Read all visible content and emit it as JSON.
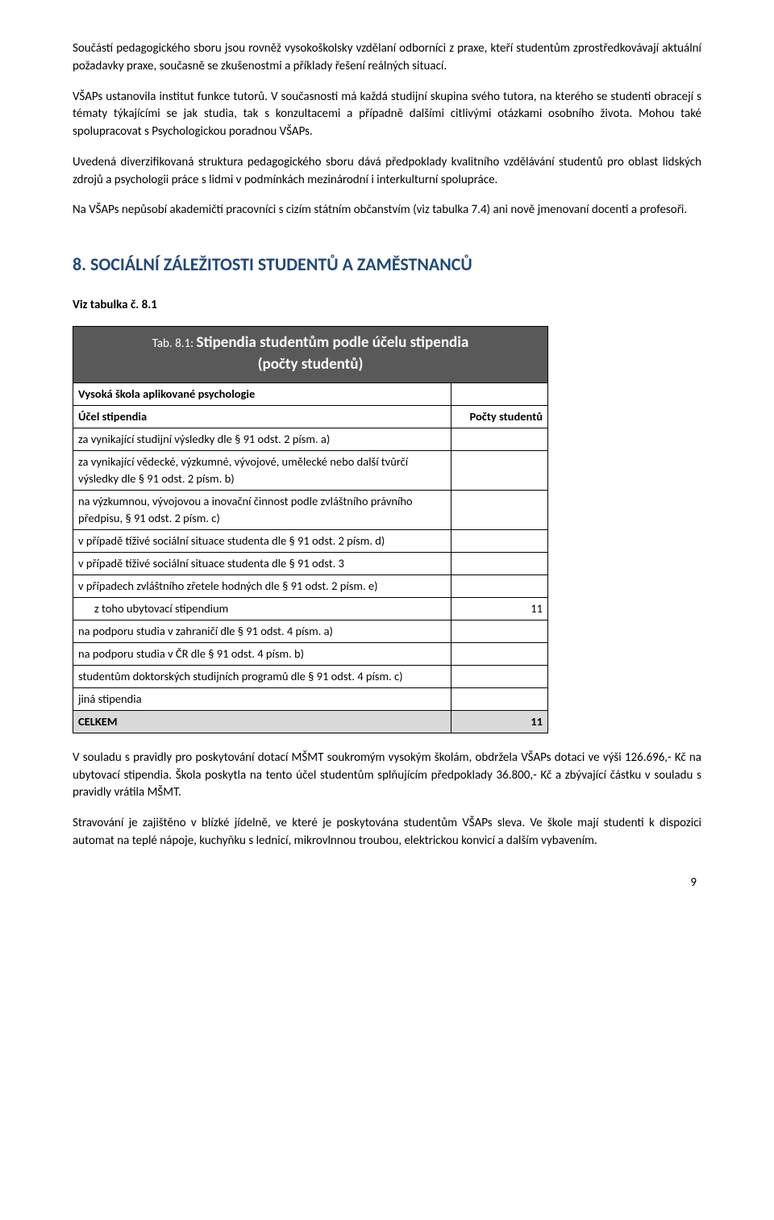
{
  "paragraphs": {
    "p1": "Součástí pedagogického sboru jsou rovněž vysokoškolsky vzdělaní odborníci z praxe, kteří studentům zprostředkovávají aktuální požadavky praxe, současně se zkušenostmi a příklady řešení reálných situací.",
    "p2": "VŠAPs ustanovila institut funkce tutorů. V současnosti má každá studijní skupina svého tutora, na kterého se studenti obracejí s tématy týkajícími se jak studia, tak s konzultacemi a případně dalšími citlivými otázkami osobního života. Mohou také spolupracovat s Psychologickou poradnou VŠAPs.",
    "p3": "Uvedená diverzifikovaná struktura pedagogického sboru dává předpoklady kvalitního vzdělávání studentů pro oblast lidských zdrojů a psychologii práce s lidmi v podmínkách mezinárodní i interkulturní spolupráce.",
    "p4": "Na VŠAPs nepůsobí akademičtí pracovníci s cizím státním občanstvím (viz tabulka 7.4) ani nově jmenovaní docenti a profesoři.",
    "p5": "V souladu s pravidly pro poskytování dotací MŠMT soukromým vysokým školám, obdržela VŠAPs dotaci ve výši 126.696,- Kč na ubytovací stipendia. Škola poskytla na tento účel studentům splňujícím předpoklady 36.800,- Kč a zbývající částku v souladu s pravidly vrátila MŠMT.",
    "p6": "Stravování je zajištěno v blízké jídelně, ve které je poskytována studentům VŠAPs sleva. Ve škole mají studenti k dispozici automat na teplé nápoje, kuchyňku s lednicí, mikrovlnnou troubou, elektrickou konvicí a dalším vybavením."
  },
  "section": {
    "heading": "8. SOCIÁLNÍ ZÁLEŽITOSTI STUDENTŮ A ZAMĚSTNANCŮ",
    "heading_color": "#1f497d",
    "sub": "Viz tabulka č. 8.1"
  },
  "table": {
    "title_label": "Tab. 8.1: ",
    "title_main": "Stipendia studentům podle účelu stipendia",
    "title_sub": "(počty studentů)",
    "header_bg": "#595959",
    "header_fg": "#ffffff",
    "border_color": "#000000",
    "school": "Vysoká škola aplikované psychologie",
    "col1": "Účel stipendia",
    "col2": "Počty studentů",
    "rows": [
      {
        "label": "za vynikající studijní výsledky dle § 91 odst. 2 písm. a)",
        "value": ""
      },
      {
        "label": "za vynikající vědecké, výzkumné, vývojové, umělecké nebo další tvůrčí výsledky dle § 91 odst. 2 písm. b)",
        "value": ""
      },
      {
        "label": "na výzkumnou, vývojovou a inovační činnost podle zvláštního právního předpisu, § 91 odst. 2 písm. c)",
        "value": ""
      },
      {
        "label": "v případě tíživé sociální situace studenta dle § 91 odst. 2 písm. d)",
        "value": ""
      },
      {
        "label": "v případě tíživé sociální situace studenta dle § 91 odst. 3",
        "value": ""
      },
      {
        "label": "v případech zvláštního zřetele hodných dle § 91 odst. 2 písm. e)",
        "value": ""
      },
      {
        "label": "z toho ubytovací stipendium",
        "value": "11",
        "indent": true
      },
      {
        "label": "na podporu studia v zahraničí dle § 91 odst. 4 písm. a)",
        "value": ""
      },
      {
        "label": "na podporu studia v ČR dle § 91 odst. 4 písm. b)",
        "value": ""
      },
      {
        "label": "studentům doktorských studijních programů dle § 91 odst. 4 písm. c)",
        "value": ""
      },
      {
        "label": "jiná stipendia",
        "value": ""
      }
    ],
    "total_label": "CELKEM",
    "total_value": "11",
    "total_bg": "#d9d9d9"
  },
  "page_number": "9"
}
